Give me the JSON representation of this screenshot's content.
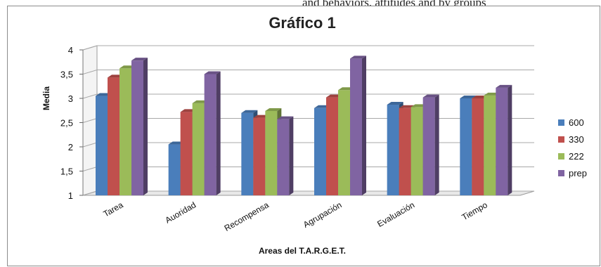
{
  "top_text": "and behaviors, attitudes and by groups",
  "chart_data": {
    "type": "bar",
    "title": "Gráfico 1",
    "xlabel": "Areas del T.A.R.G.E.T.",
    "ylabel": "Media",
    "ylim": [
      1,
      4
    ],
    "yticks": [
      "1",
      "1,5",
      "2",
      "2,5",
      "3",
      "3,5",
      "4"
    ],
    "grid": true,
    "legend_position": "right",
    "categories": [
      "Tarea",
      "Auoridad",
      "Recompensa",
      "Agrupación",
      "Evaluación",
      "Tiempo"
    ],
    "series": [
      {
        "name": "600",
        "color": "#4a7ebb",
        "values": [
          3.05,
          2.05,
          2.7,
          2.8,
          2.87,
          3.0
        ]
      },
      {
        "name": "330",
        "color": "#c0504d",
        "values": [
          3.43,
          2.72,
          2.6,
          3.02,
          2.8,
          3.0
        ]
      },
      {
        "name": "222",
        "color": "#9bbb59",
        "values": [
          3.62,
          2.9,
          2.74,
          3.17,
          2.82,
          3.06
        ]
      },
      {
        "name": "prep",
        "color": "#8064a2",
        "values": [
          3.78,
          3.5,
          2.57,
          3.82,
          3.02,
          3.22
        ]
      }
    ]
  }
}
